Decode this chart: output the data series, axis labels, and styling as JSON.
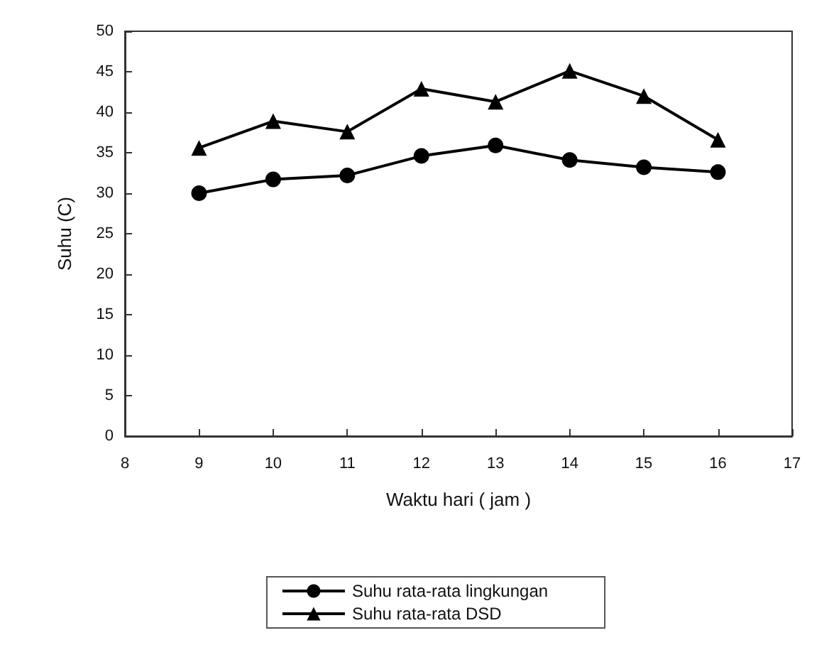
{
  "chart_data": {
    "type": "line",
    "xlabel": "Waktu hari ( jam )",
    "ylabel": "Suhu (C)",
    "x": [
      9,
      10,
      11,
      12,
      13,
      14,
      15,
      16
    ],
    "series": [
      {
        "name": "Suhu rata-rata lingkungan",
        "color": "#000000",
        "marker": "circle",
        "values": [
          30.0,
          31.7,
          32.2,
          34.6,
          35.9,
          34.1,
          33.2,
          32.6
        ]
      },
      {
        "name": "Suhu rata-rata DSD",
        "color": "#000000",
        "marker": "triangle",
        "values": [
          35.6,
          38.9,
          37.6,
          42.9,
          41.3,
          45.1,
          42.0,
          36.6
        ]
      }
    ],
    "xlim": [
      8,
      17
    ],
    "xticks": [
      8,
      9,
      10,
      11,
      12,
      13,
      14,
      15,
      16,
      17
    ],
    "ylim": [
      0,
      50
    ],
    "yticks": [
      0,
      5,
      10,
      15,
      20,
      25,
      30,
      35,
      40,
      45,
      50
    ],
    "grid": false,
    "legend": "bottom",
    "line_style": "solid"
  }
}
